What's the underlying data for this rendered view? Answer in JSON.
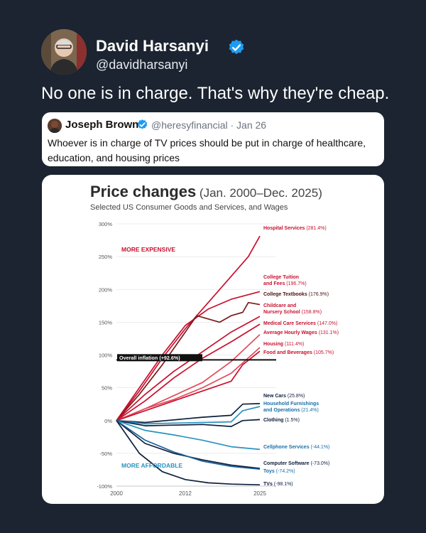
{
  "tweet": {
    "author_name": "David Harsanyi",
    "handle": "@davidharsanyi",
    "text": "No one is in charge. That's why they're cheap."
  },
  "quoted_tweet": {
    "author_name": "Joseph Brown",
    "meta": "@heresyfinancial · Jan 26",
    "text": "Whoever is in charge of TV prices should be put in charge of healthcare, education, and housing prices"
  },
  "colors": {
    "background": "#1b2430",
    "verified": "#1d9bf0",
    "red": "#c8102e",
    "blue": "#1a5f99",
    "teal": "#2a93c0",
    "navy": "#0d1f3c"
  },
  "chart_data": {
    "type": "line",
    "title": "Price changes",
    "title_suffix": "(Jan. 2000–Dec. 2025)",
    "subtitle": "Selected US Consumer Goods and Services, and Wages",
    "x_ticks": [
      "2000",
      "2012",
      "2025"
    ],
    "xlim": [
      2000,
      2025
    ],
    "y_ticks": [
      "300%",
      "250%",
      "200%",
      "150%",
      "100%",
      "50%",
      "0%",
      "-50%",
      "-100%"
    ],
    "ylim": [
      -100,
      300
    ],
    "annotations": [
      "MORE EXPENSIVE",
      "MORE AFFORDABLE"
    ],
    "reference_line": {
      "label": "Overall inflation (+92.6%)",
      "value": 92.6
    },
    "series": [
      {
        "name": "Hospital Services",
        "label_value": "(281.4%)",
        "color": "#c8102e",
        "values": [
          [
            2000,
            0
          ],
          [
            2004,
            45
          ],
          [
            2008,
            95
          ],
          [
            2012,
            140
          ],
          [
            2016,
            180
          ],
          [
            2020,
            220
          ],
          [
            2023,
            250
          ],
          [
            2025,
            281.4
          ]
        ]
      },
      {
        "name": "College Tuition and Fees",
        "label_value": "(196.7%)",
        "color": "#c8102e",
        "values": [
          [
            2000,
            0
          ],
          [
            2004,
            50
          ],
          [
            2008,
            100
          ],
          [
            2012,
            145
          ],
          [
            2016,
            170
          ],
          [
            2020,
            185
          ],
          [
            2025,
            196.7
          ]
        ]
      },
      {
        "name": "College Textbooks",
        "label_value": "(176.9%)",
        "color": "#7a1b1b",
        "values": [
          [
            2000,
            0
          ],
          [
            2004,
            40
          ],
          [
            2008,
            85
          ],
          [
            2012,
            135
          ],
          [
            2014,
            160
          ],
          [
            2016,
            155
          ],
          [
            2018,
            150
          ],
          [
            2020,
            160
          ],
          [
            2022,
            165
          ],
          [
            2023,
            180
          ],
          [
            2025,
            176.9
          ]
        ]
      },
      {
        "name": "Childcare and Nursery School",
        "label_value": "(158.8%)",
        "color": "#c8102e",
        "values": [
          [
            2000,
            0
          ],
          [
            2005,
            40
          ],
          [
            2010,
            75
          ],
          [
            2015,
            105
          ],
          [
            2020,
            135
          ],
          [
            2025,
            158.8
          ]
        ]
      },
      {
        "name": "Medical Care Services",
        "label_value": "(147.0%)",
        "color": "#c8102e",
        "values": [
          [
            2000,
            0
          ],
          [
            2005,
            30
          ],
          [
            2010,
            65
          ],
          [
            2015,
            95
          ],
          [
            2020,
            120
          ],
          [
            2025,
            147.0
          ]
        ]
      },
      {
        "name": "Average Hourly Wages",
        "label_value": "(131.1%)",
        "color": "#e14b5a",
        "values": [
          [
            2000,
            0
          ],
          [
            2005,
            18
          ],
          [
            2010,
            38
          ],
          [
            2015,
            58
          ],
          [
            2020,
            90
          ],
          [
            2025,
            131.1
          ]
        ]
      },
      {
        "name": "Housing",
        "label_value": "(111.4%)",
        "color": "#e14b5a",
        "values": [
          [
            2000,
            0
          ],
          [
            2005,
            18
          ],
          [
            2010,
            32
          ],
          [
            2015,
            50
          ],
          [
            2020,
            72
          ],
          [
            2025,
            111.4
          ]
        ]
      },
      {
        "name": "Food and Beverages",
        "label_value": "(105.7%)",
        "color": "#c8102e",
        "values": [
          [
            2000,
            0
          ],
          [
            2005,
            15
          ],
          [
            2010,
            30
          ],
          [
            2015,
            45
          ],
          [
            2020,
            60
          ],
          [
            2022,
            85
          ],
          [
            2025,
            105.7
          ]
        ]
      },
      {
        "name": "New Cars",
        "label_value": "(25.8%)",
        "color": "#0d1f3c",
        "values": [
          [
            2000,
            0
          ],
          [
            2005,
            -3
          ],
          [
            2010,
            1
          ],
          [
            2015,
            5
          ],
          [
            2020,
            8
          ],
          [
            2022,
            25
          ],
          [
            2025,
            25.8
          ]
        ]
      },
      {
        "name": "Household Furnishings and Operations",
        "label_value": "(21.4%)",
        "color": "#2a93c0",
        "values": [
          [
            2000,
            0
          ],
          [
            2005,
            -5
          ],
          [
            2010,
            -4
          ],
          [
            2015,
            -3
          ],
          [
            2020,
            -2
          ],
          [
            2022,
            15
          ],
          [
            2025,
            21.4
          ]
        ]
      },
      {
        "name": "Clothing",
        "label_value": "(1.5%)",
        "color": "#0d1f3c",
        "values": [
          [
            2000,
            0
          ],
          [
            2005,
            -8
          ],
          [
            2010,
            -7
          ],
          [
            2015,
            -6
          ],
          [
            2020,
            -9
          ],
          [
            2022,
            0
          ],
          [
            2025,
            1.5
          ]
        ]
      },
      {
        "name": "Cellphone Services",
        "label_value": "(-44.1%)",
        "color": "#2a93c0",
        "values": [
          [
            2000,
            0
          ],
          [
            2005,
            -15
          ],
          [
            2010,
            -22
          ],
          [
            2015,
            -30
          ],
          [
            2020,
            -40
          ],
          [
            2025,
            -44.1
          ]
        ]
      },
      {
        "name": "Computer Software",
        "label_value": "(-73.0%)",
        "color": "#0d1f3c",
        "values": [
          [
            2000,
            0
          ],
          [
            2005,
            -35
          ],
          [
            2010,
            -50
          ],
          [
            2015,
            -60
          ],
          [
            2020,
            -68
          ],
          [
            2025,
            -73.0
          ]
        ]
      },
      {
        "name": "Toys",
        "label_value": "(-74.2%)",
        "color": "#1a5f99",
        "values": [
          [
            2000,
            0
          ],
          [
            2005,
            -30
          ],
          [
            2010,
            -48
          ],
          [
            2015,
            -62
          ],
          [
            2020,
            -70
          ],
          [
            2025,
            -74.2
          ]
        ]
      },
      {
        "name": "TVs",
        "label_value": "(-98.1%)",
        "color": "#0d1f3c",
        "values": [
          [
            2000,
            0
          ],
          [
            2004,
            -50
          ],
          [
            2008,
            -78
          ],
          [
            2012,
            -90
          ],
          [
            2016,
            -95
          ],
          [
            2020,
            -97
          ],
          [
            2025,
            -98.1
          ]
        ]
      }
    ]
  }
}
